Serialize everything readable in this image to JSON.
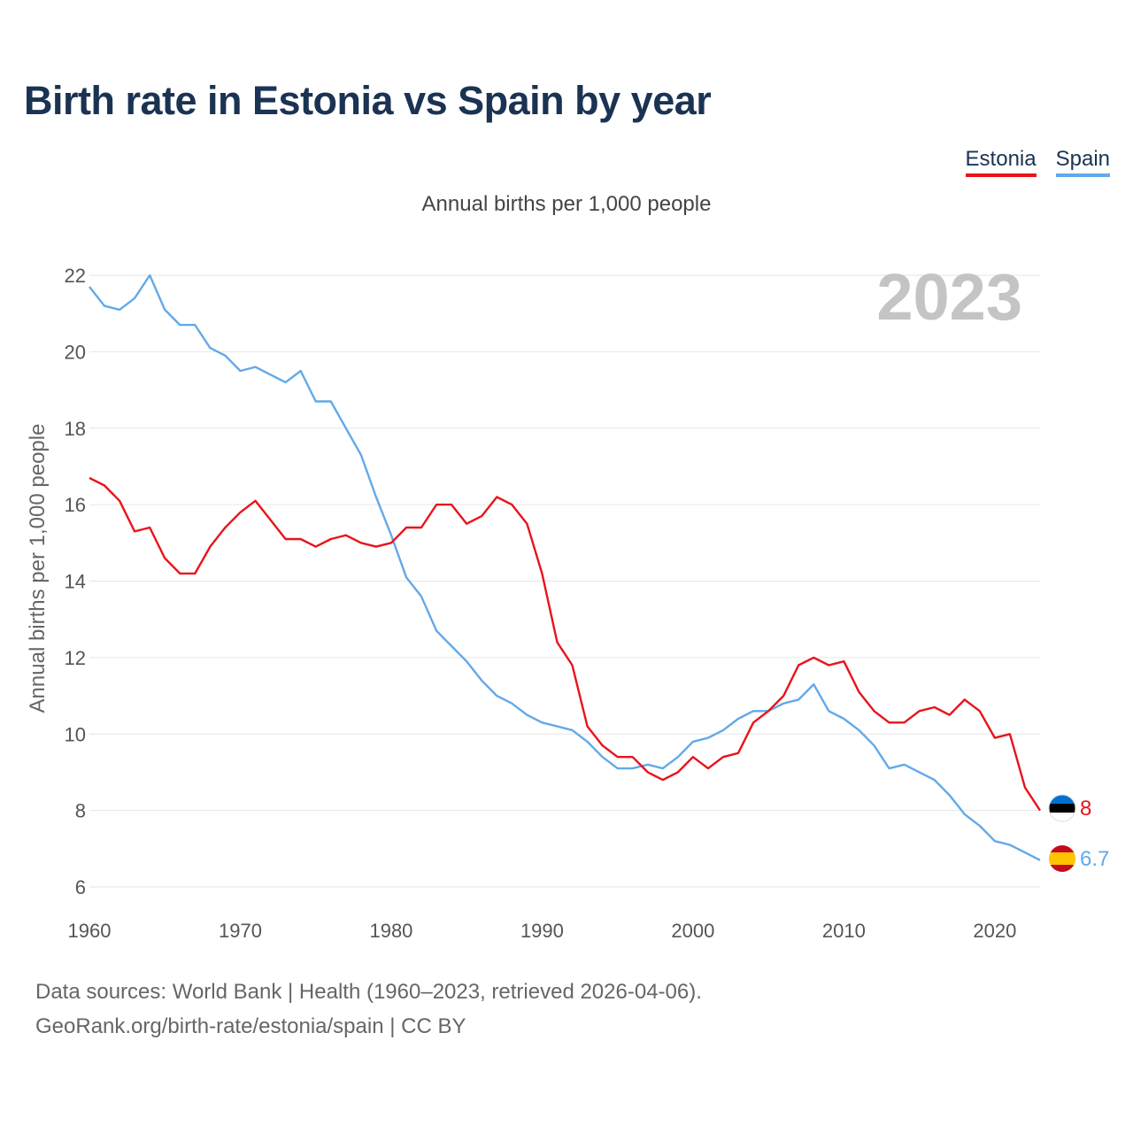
{
  "title": "Birth rate in Estonia vs Spain by year",
  "legend": {
    "estonia": "Estonia",
    "spain": "Spain"
  },
  "colors": {
    "estonia": "#e8131b",
    "spain": "#63a9e8",
    "title": "#1b3353",
    "year_watermark": "#c4c4c4"
  },
  "chart_data": {
    "type": "line",
    "title": "Birth rate in Estonia vs Spain by year",
    "subtitle": "Annual births per 1,000 people",
    "xlabel": "",
    "ylabel": "Annual births per 1,000 people",
    "xlim": [
      1960,
      2023
    ],
    "ylim": [
      6,
      22
    ],
    "xticks": [
      1960,
      1970,
      1980,
      1990,
      2000,
      2010,
      2020
    ],
    "yticks": [
      6,
      8,
      10,
      12,
      14,
      16,
      18,
      20,
      22
    ],
    "year_label": "2023",
    "legend_position": "top-right",
    "grid": true,
    "x": [
      1960,
      1961,
      1962,
      1963,
      1964,
      1965,
      1966,
      1967,
      1968,
      1969,
      1970,
      1971,
      1972,
      1973,
      1974,
      1975,
      1976,
      1977,
      1978,
      1979,
      1980,
      1981,
      1982,
      1983,
      1984,
      1985,
      1986,
      1987,
      1988,
      1989,
      1990,
      1991,
      1992,
      1993,
      1994,
      1995,
      1996,
      1997,
      1998,
      1999,
      2000,
      2001,
      2002,
      2003,
      2004,
      2005,
      2006,
      2007,
      2008,
      2009,
      2010,
      2011,
      2012,
      2013,
      2014,
      2015,
      2016,
      2017,
      2018,
      2019,
      2020,
      2021,
      2022,
      2023
    ],
    "series": [
      {
        "name": "Estonia",
        "end_label": "8",
        "values": [
          16.7,
          16.5,
          16.1,
          15.3,
          15.4,
          14.6,
          14.2,
          14.2,
          14.9,
          15.4,
          15.8,
          16.1,
          15.6,
          15.1,
          15.1,
          14.9,
          15.1,
          15.2,
          15.0,
          14.9,
          15.0,
          15.4,
          15.4,
          16.0,
          16.0,
          15.5,
          15.7,
          16.2,
          16.0,
          15.5,
          14.2,
          12.4,
          11.8,
          10.2,
          9.7,
          9.4,
          9.4,
          9.0,
          8.8,
          9.0,
          9.4,
          9.1,
          9.4,
          9.5,
          10.3,
          10.6,
          11.0,
          11.8,
          12.0,
          11.8,
          11.9,
          11.1,
          10.6,
          10.3,
          10.3,
          10.6,
          10.7,
          10.5,
          10.9,
          10.6,
          9.9,
          10.0,
          8.6,
          8.0
        ]
      },
      {
        "name": "Spain",
        "end_label": "6.7",
        "values": [
          21.7,
          21.2,
          21.1,
          21.4,
          22.0,
          21.1,
          20.7,
          20.7,
          20.1,
          19.9,
          19.5,
          19.6,
          19.4,
          19.2,
          19.5,
          18.7,
          18.7,
          18.0,
          17.3,
          16.2,
          15.2,
          14.1,
          13.6,
          12.7,
          12.3,
          11.9,
          11.4,
          11.0,
          10.8,
          10.5,
          10.3,
          10.2,
          10.1,
          9.8,
          9.4,
          9.1,
          9.1,
          9.2,
          9.1,
          9.4,
          9.8,
          9.9,
          10.1,
          10.4,
          10.6,
          10.6,
          10.8,
          10.9,
          11.3,
          10.6,
          10.4,
          10.1,
          9.7,
          9.1,
          9.2,
          9.0,
          8.8,
          8.4,
          7.9,
          7.6,
          7.2,
          7.1,
          6.9,
          6.7
        ]
      }
    ]
  },
  "source": {
    "line1": "Data sources: World Bank | Health (1960–2023, retrieved 2026-04-06).",
    "line2": "GeoRank.org/birth-rate/estonia/spain | CC BY"
  }
}
